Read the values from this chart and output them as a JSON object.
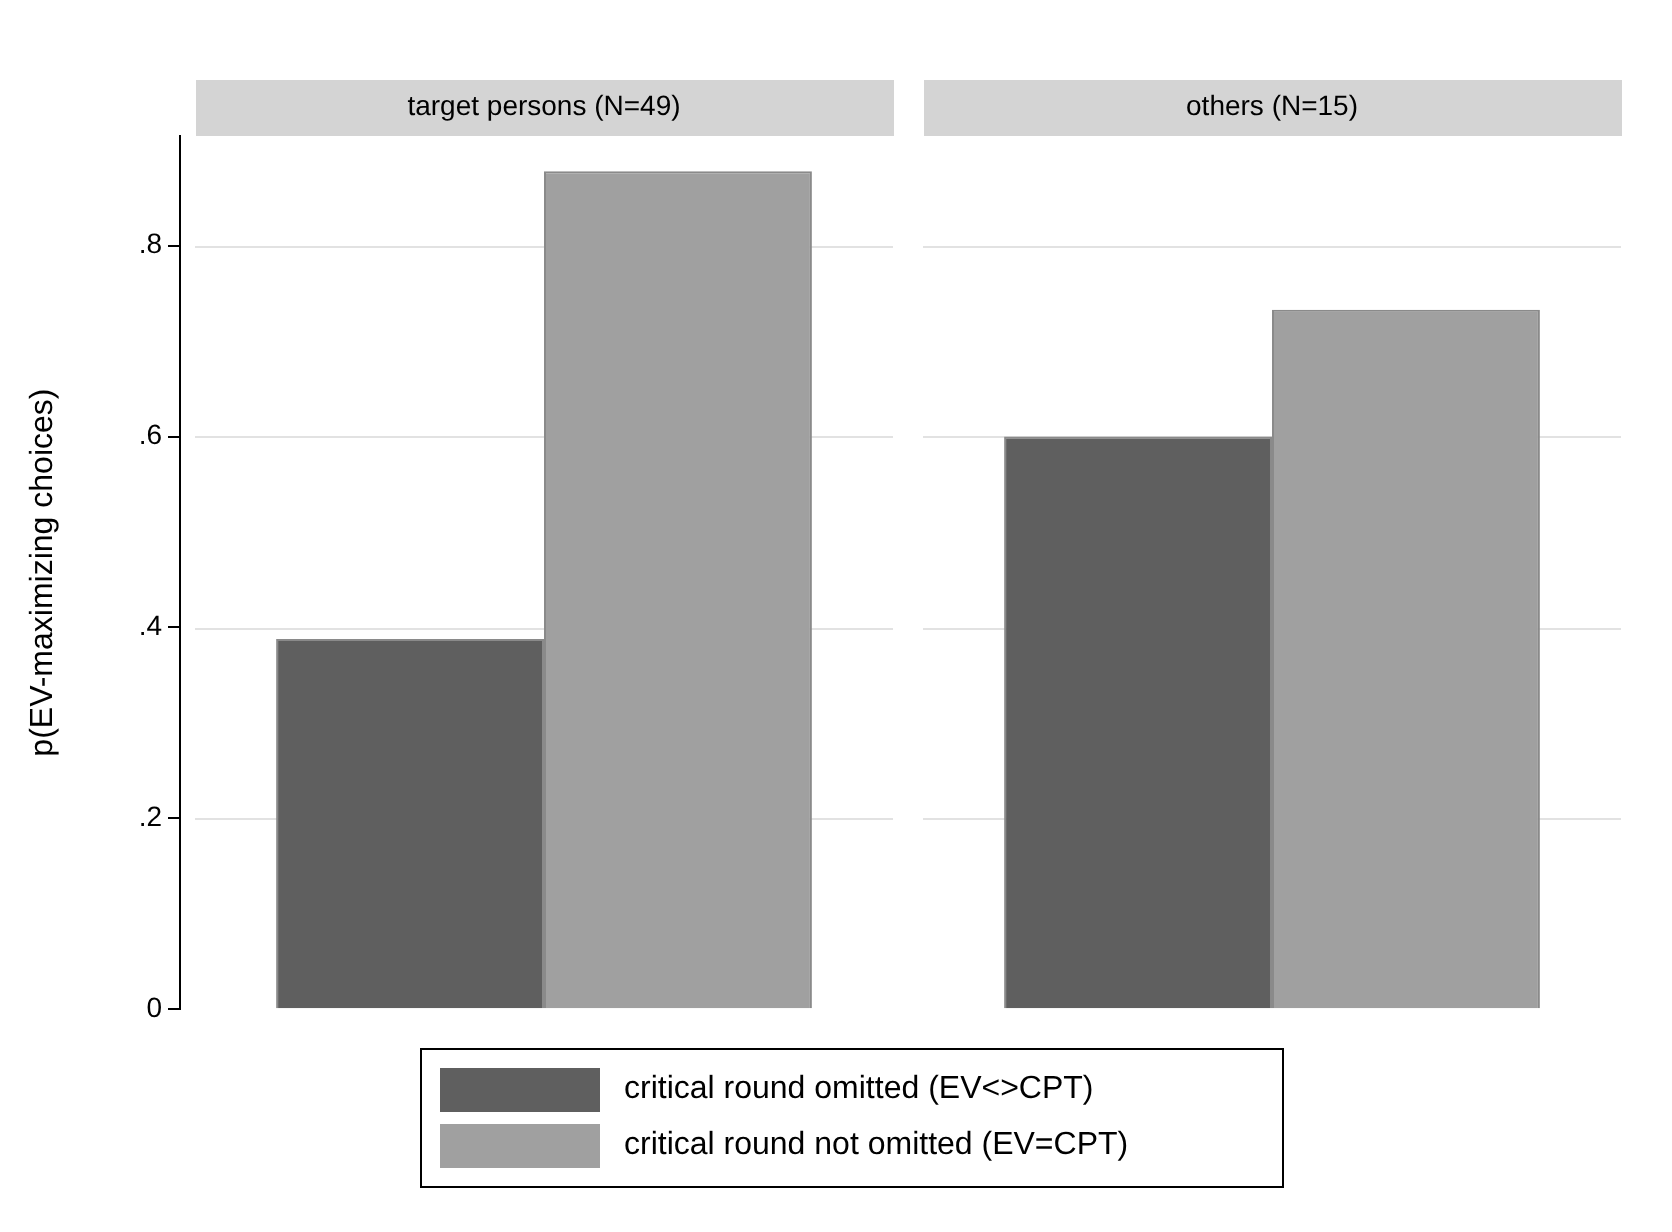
{
  "chart_data": {
    "type": "bar",
    "ylabel": "p(EV-maximizing choices)",
    "categories": [
      "target persons (N=49)",
      "others (N=15)"
    ],
    "series": [
      {
        "name": "critical round omitted (EV<>CPT)",
        "color": "#5f5f5f",
        "values": [
          0.388,
          0.6
        ]
      },
      {
        "name": "critical round not omitted (EV=CPT)",
        "color": "#a0a0a0",
        "values": [
          0.878,
          0.733
        ]
      }
    ],
    "ylim": [
      0,
      0.915
    ],
    "yticks": [
      0,
      {
        "value": 0.2,
        "label": ".2"
      },
      {
        "value": 0.4,
        "label": ".4"
      },
      {
        "value": 0.6,
        "label": ".6"
      },
      {
        "value": 0.8,
        "label": ".8"
      }
    ],
    "grid": "y",
    "legend": "bottom"
  }
}
